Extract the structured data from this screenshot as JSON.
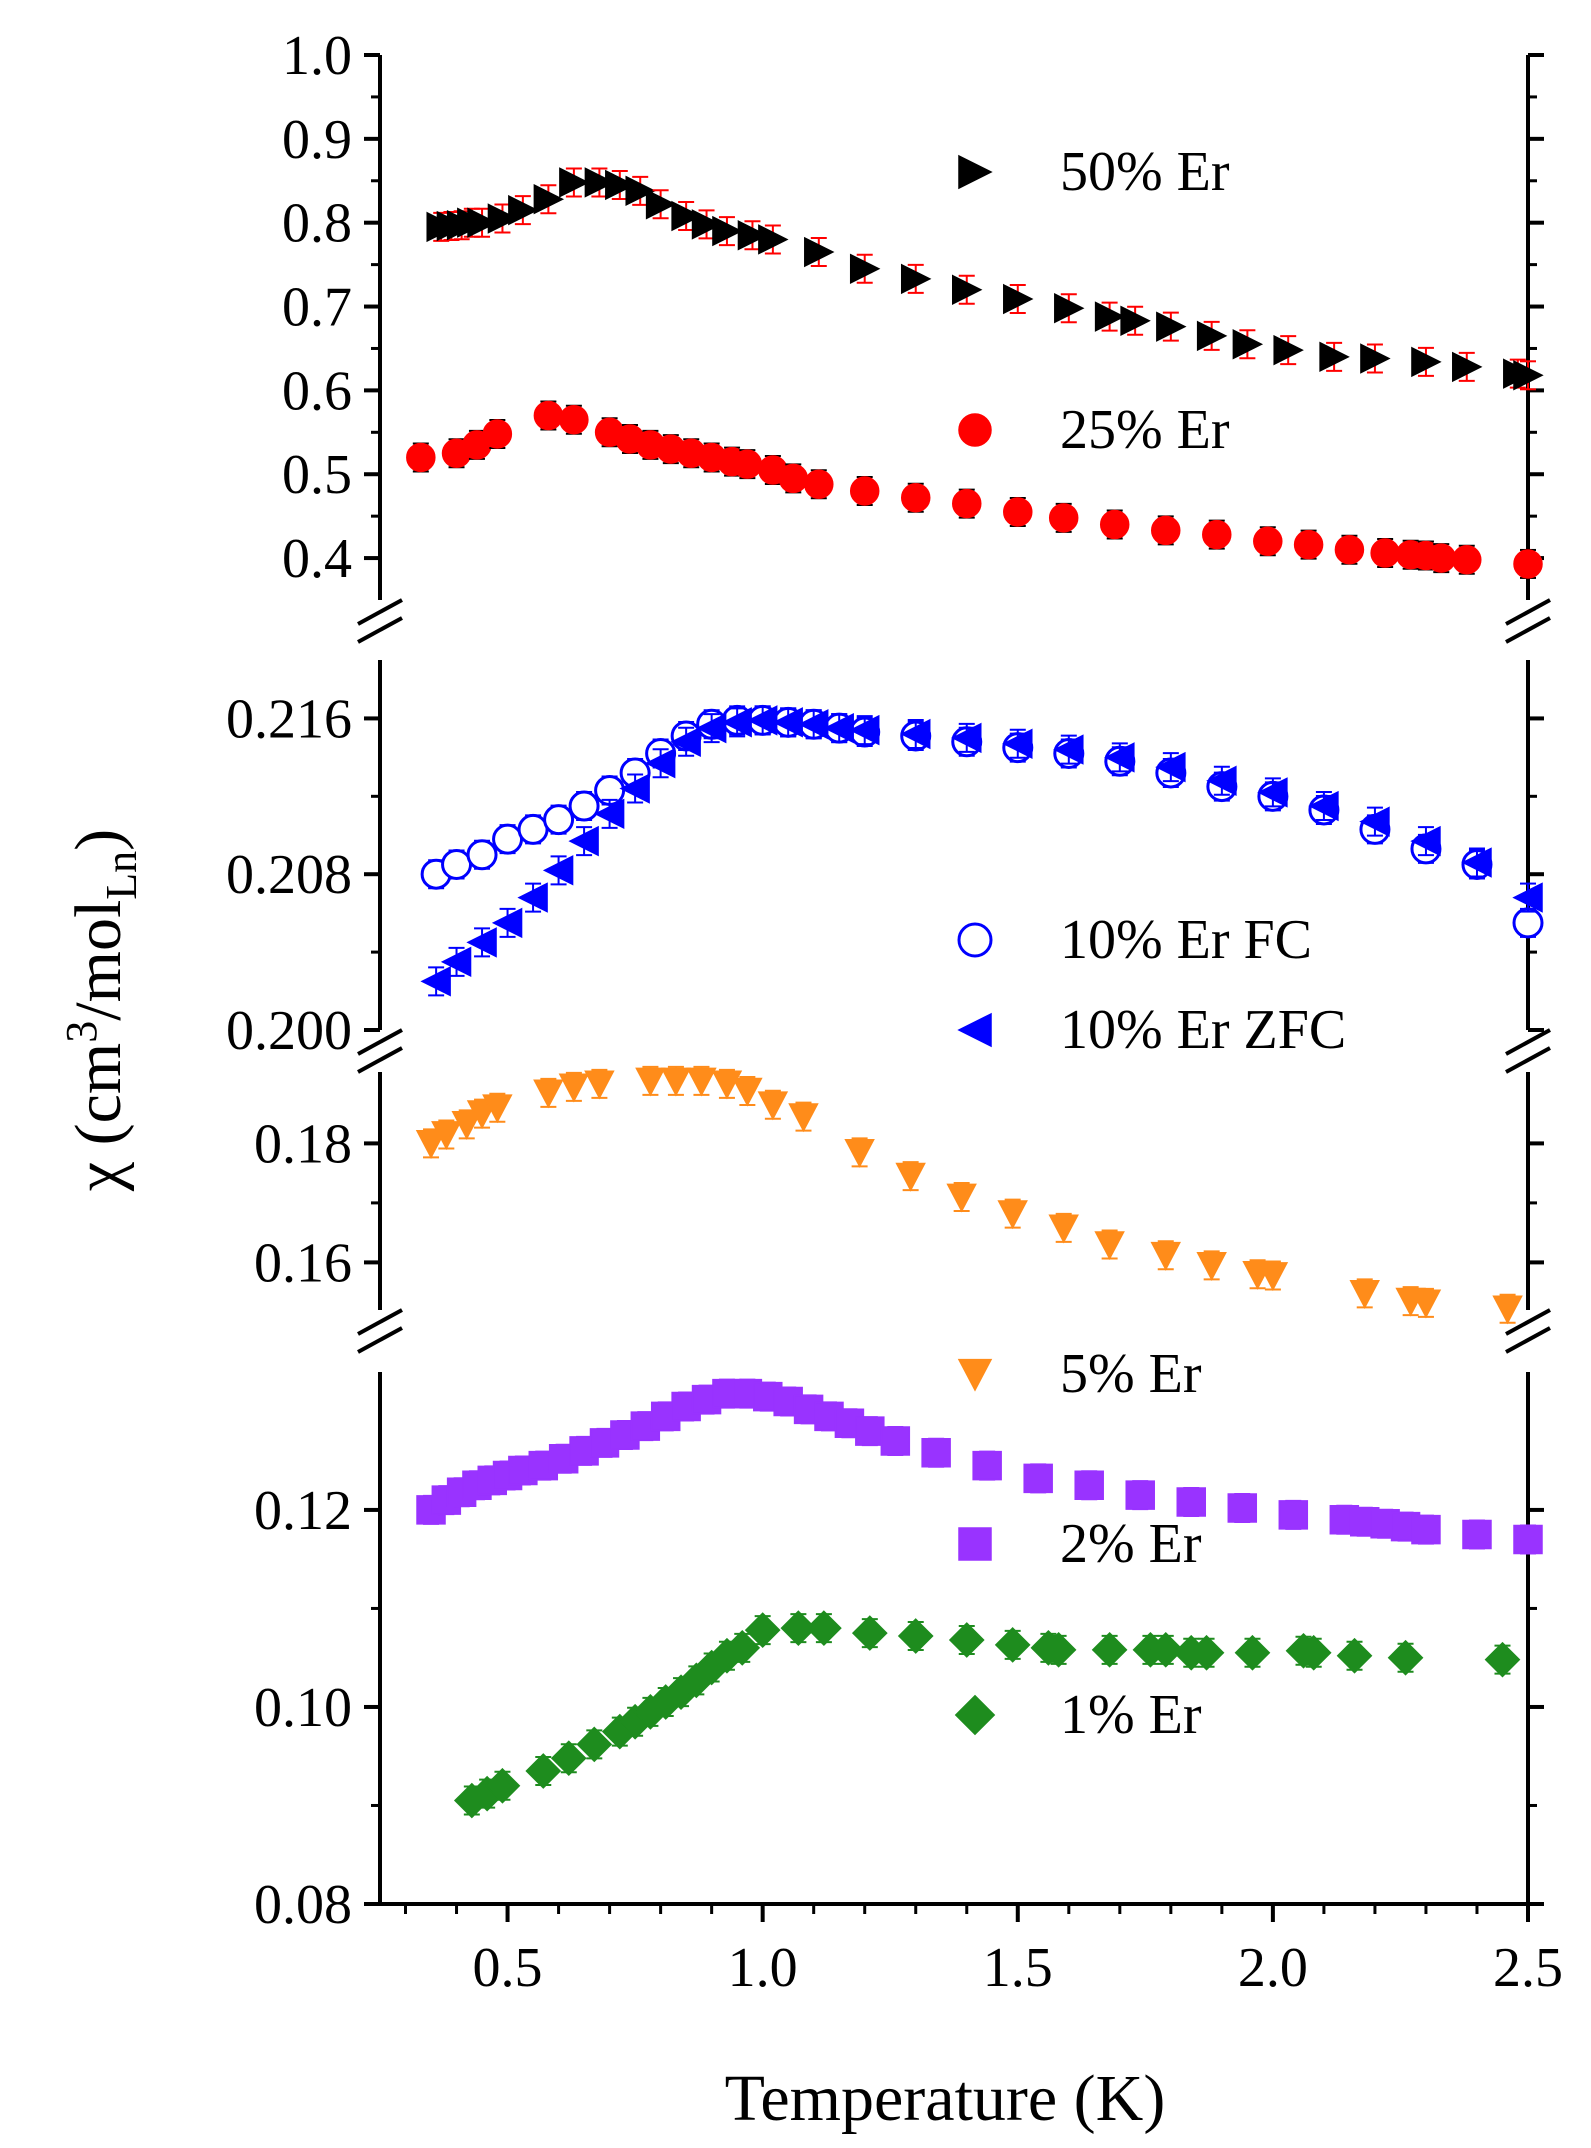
{
  "chart_data": {
    "type": "scatter",
    "xlabel": "Temperature (K)",
    "ylabel": {
      "main": "χ (cm",
      "sup": "3",
      "mid": "/mol",
      "sub": "Ln",
      "end": ")"
    },
    "xlim": [
      0.25,
      2.5
    ],
    "xticks": [
      "0.5",
      "1.0",
      "1.5",
      "2.0",
      "2.5"
    ],
    "xtick_values": [
      0.5,
      1.0,
      1.5,
      2.0,
      2.5
    ],
    "panels": [
      {
        "ylim": [
          0.35,
          1.0
        ],
        "yticks": [
          "0.4",
          "0.5",
          "0.6",
          "0.7",
          "0.8",
          "0.9",
          "1.0"
        ],
        "ytick_values": [
          0.4,
          0.5,
          0.6,
          0.7,
          0.8,
          0.9,
          1.0
        ],
        "series": [
          {
            "name": "50% Er",
            "marker": "triangle-right",
            "color": "#000000",
            "fill": "filled",
            "errbar_color": "#ff0000",
            "x": [
              0.37,
              0.39,
              0.41,
              0.43,
              0.45,
              0.49,
              0.53,
              0.58,
              0.63,
              0.68,
              0.72,
              0.76,
              0.8,
              0.85,
              0.89,
              0.93,
              0.98,
              1.02,
              1.11,
              1.2,
              1.3,
              1.4,
              1.5,
              1.6,
              1.68,
              1.73,
              1.8,
              1.88,
              1.95,
              2.03,
              2.12,
              2.2,
              2.3,
              2.38,
              2.48,
              2.5
            ],
            "y": [
              0.795,
              0.796,
              0.797,
              0.8,
              0.8,
              0.805,
              0.815,
              0.828,
              0.848,
              0.848,
              0.845,
              0.838,
              0.822,
              0.808,
              0.798,
              0.79,
              0.785,
              0.78,
              0.765,
              0.745,
              0.733,
              0.72,
              0.709,
              0.698,
              0.688,
              0.683,
              0.676,
              0.665,
              0.655,
              0.648,
              0.64,
              0.638,
              0.634,
              0.628,
              0.62,
              0.618
            ]
          },
          {
            "name": "25% Er",
            "marker": "circle",
            "color": "#ff0000",
            "fill": "filled",
            "errbar_color": "#000000",
            "x": [
              0.33,
              0.4,
              0.44,
              0.48,
              0.58,
              0.63,
              0.7,
              0.74,
              0.78,
              0.82,
              0.86,
              0.9,
              0.94,
              0.97,
              1.02,
              1.06,
              1.11,
              1.2,
              1.3,
              1.4,
              1.5,
              1.59,
              1.69,
              1.79,
              1.89,
              1.99,
              2.07,
              2.15,
              2.22,
              2.27,
              2.3,
              2.33,
              2.38,
              2.5
            ],
            "y": [
              0.52,
              0.525,
              0.535,
              0.548,
              0.57,
              0.565,
              0.55,
              0.542,
              0.535,
              0.53,
              0.525,
              0.52,
              0.515,
              0.512,
              0.505,
              0.495,
              0.488,
              0.48,
              0.472,
              0.465,
              0.455,
              0.448,
              0.44,
              0.433,
              0.428,
              0.42,
              0.416,
              0.41,
              0.406,
              0.404,
              0.403,
              0.4,
              0.398,
              0.393
            ]
          }
        ]
      },
      {
        "ylim": [
          0.2,
          0.219
        ],
        "yticks": [
          "0.200",
          "0.208",
          "0.216"
        ],
        "ytick_values": [
          0.2,
          0.208,
          0.216
        ],
        "series": [
          {
            "name": "10% Er FC",
            "marker": "circle",
            "color": "#0000ff",
            "fill": "open",
            "x": [
              0.36,
              0.4,
              0.45,
              0.5,
              0.55,
              0.6,
              0.65,
              0.7,
              0.75,
              0.8,
              0.85,
              0.9,
              0.95,
              1.0,
              1.05,
              1.1,
              1.15,
              1.2,
              1.3,
              1.4,
              1.5,
              1.6,
              1.7,
              1.8,
              1.9,
              2.0,
              2.1,
              2.2,
              2.3,
              2.4,
              2.5
            ],
            "y": [
              0.208,
              0.2085,
              0.209,
              0.2098,
              0.2103,
              0.2108,
              0.2115,
              0.2123,
              0.2132,
              0.2142,
              0.2151,
              0.2157,
              0.2159,
              0.2159,
              0.2158,
              0.2157,
              0.2155,
              0.2153,
              0.2151,
              0.2148,
              0.2145,
              0.2142,
              0.2138,
              0.2132,
              0.2125,
              0.212,
              0.2113,
              0.2103,
              0.2093,
              0.2085,
              0.2055
            ]
          },
          {
            "name": "10% Er ZFC",
            "marker": "triangle-left",
            "color": "#0000ff",
            "fill": "filled",
            "x": [
              0.36,
              0.4,
              0.45,
              0.5,
              0.55,
              0.6,
              0.65,
              0.7,
              0.75,
              0.8,
              0.85,
              0.9,
              0.95,
              1.0,
              1.05,
              1.1,
              1.15,
              1.2,
              1.3,
              1.4,
              1.5,
              1.6,
              1.7,
              1.8,
              1.9,
              2.0,
              2.1,
              2.2,
              2.3,
              2.4,
              2.5
            ],
            "y": [
              0.2025,
              0.2035,
              0.2045,
              0.2055,
              0.2068,
              0.2082,
              0.2097,
              0.2111,
              0.2124,
              0.2137,
              0.2148,
              0.2155,
              0.2158,
              0.2159,
              0.2158,
              0.2157,
              0.2155,
              0.2154,
              0.2152,
              0.215,
              0.2147,
              0.2144,
              0.214,
              0.2135,
              0.2128,
              0.2122,
              0.2115,
              0.2107,
              0.2097,
              0.2086,
              0.2068
            ]
          }
        ]
      },
      {
        "ylim": [
          0.152,
          0.192
        ],
        "yticks": [
          "0.16",
          "0.18"
        ],
        "ytick_values": [
          0.16,
          0.18
        ],
        "series": [
          {
            "name": "5%  Er",
            "marker": "triangle-down",
            "color": "#ff8c1a",
            "fill": "filled",
            "x": [
              0.35,
              0.38,
              0.42,
              0.45,
              0.48,
              0.58,
              0.63,
              0.68,
              0.78,
              0.83,
              0.88,
              0.93,
              0.97,
              1.02,
              1.08,
              1.19,
              1.29,
              1.39,
              1.49,
              1.59,
              1.68,
              1.79,
              1.88,
              1.97,
              2.0,
              2.18,
              2.27,
              2.3,
              2.46
            ],
            "y": [
              0.18,
              0.1815,
              0.1832,
              0.185,
              0.186,
              0.1885,
              0.1895,
              0.19,
              0.1905,
              0.1905,
              0.1905,
              0.19,
              0.1888,
              0.1865,
              0.1845,
              0.1785,
              0.1745,
              0.171,
              0.1682,
              0.1658,
              0.163,
              0.1612,
              0.1595,
              0.158,
              0.1578,
              0.1548,
              0.1535,
              0.1532,
              0.1522
            ]
          }
        ]
      },
      {
        "ylim": [
          0.08,
          0.134
        ],
        "yticks": [
          "0.08",
          "0.10",
          "0.12"
        ],
        "ytick_values": [
          0.08,
          0.1,
          0.12
        ],
        "series": [
          {
            "name": "2%  Er",
            "marker": "square",
            "color": "#9933ff",
            "fill": "filled",
            "x": [
              0.35,
              0.38,
              0.41,
              0.44,
              0.47,
              0.5,
              0.53,
              0.57,
              0.61,
              0.65,
              0.69,
              0.73,
              0.77,
              0.81,
              0.85,
              0.89,
              0.93,
              0.97,
              1.01,
              1.05,
              1.09,
              1.13,
              1.17,
              1.21,
              1.26,
              1.34,
              1.44,
              1.54,
              1.64,
              1.74,
              1.84,
              1.94,
              2.04,
              2.14,
              2.18,
              2.22,
              2.26,
              2.3,
              2.4,
              2.5
            ],
            "y": [
              0.12,
              0.121,
              0.1218,
              0.1225,
              0.123,
              0.1235,
              0.124,
              0.1245,
              0.1252,
              0.126,
              0.1268,
              0.1276,
              0.1285,
              0.1295,
              0.1305,
              0.1312,
              0.1318,
              0.1318,
              0.1315,
              0.131,
              0.1302,
              0.1295,
              0.1288,
              0.128,
              0.127,
              0.1258,
              0.1245,
              0.1232,
              0.1225,
              0.1215,
              0.1208,
              0.1202,
              0.1195,
              0.119,
              0.1188,
              0.1186,
              0.1183,
              0.118,
              0.1175,
              0.117
            ]
          },
          {
            "name": "1%  Er",
            "marker": "diamond",
            "color": "#1e8c1e",
            "fill": "filled",
            "x": [
              0.43,
              0.46,
              0.49,
              0.57,
              0.62,
              0.67,
              0.72,
              0.75,
              0.78,
              0.81,
              0.84,
              0.87,
              0.9,
              0.93,
              0.96,
              1.0,
              1.07,
              1.12,
              1.21,
              1.3,
              1.4,
              1.49,
              1.56,
              1.58,
              1.68,
              1.76,
              1.79,
              1.84,
              1.87,
              1.96,
              2.06,
              2.08,
              2.16,
              2.26,
              2.45
            ],
            "y": [
              0.0905,
              0.0912,
              0.092,
              0.0935,
              0.0948,
              0.0962,
              0.0975,
              0.0985,
              0.0995,
              0.1005,
              0.1015,
              0.1027,
              0.104,
              0.1052,
              0.106,
              0.1078,
              0.108,
              0.108,
              0.1075,
              0.1072,
              0.1068,
              0.1063,
              0.106,
              0.1058,
              0.1058,
              0.1058,
              0.1058,
              0.1055,
              0.1055,
              0.1055,
              0.1057,
              0.1055,
              0.1052,
              0.105,
              0.1048
            ]
          }
        ]
      }
    ]
  }
}
